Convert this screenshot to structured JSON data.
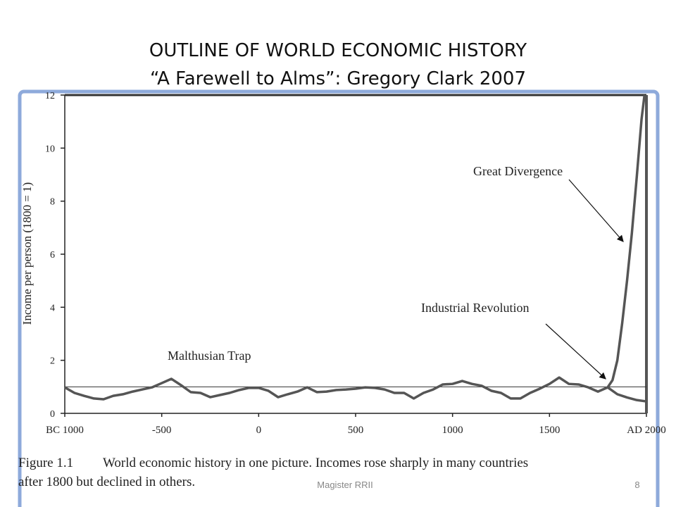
{
  "slide": {
    "title": [
      "OUTLINE OF WORLD ECONOMIC HISTORY",
      "“A Farewell to Alms”: Gregory Clark 2007"
    ],
    "footer": "Magister RRII",
    "page": "8"
  },
  "chart_data": {
    "type": "line",
    "ylabel": "Income per person (1800 = 1)",
    "caption_label": "Figure 1.1",
    "caption_lines": [
      "World economic history in one picture. Incomes rose sharply in many countries",
      "after 1800 but declined in others."
    ],
    "annotations": [
      "Malthusian Trap",
      "Great Divergence",
      "Industrial Revolution"
    ],
    "xlim": [
      -1000,
      2000
    ],
    "ylim": [
      0,
      12
    ],
    "xticks": [
      {
        "value": -1000,
        "label": "BC 1000"
      },
      -500,
      0,
      500,
      1000,
      1500,
      {
        "value": 2000,
        "label": "AD 2000"
      }
    ],
    "yticks": [
      0,
      2,
      4,
      6,
      8,
      10,
      12
    ],
    "reference_line": 1,
    "color": "#555555",
    "series": [
      {
        "x": [
          -1000,
          -950,
          -900,
          -850,
          -800,
          -750,
          -700,
          -650,
          -600,
          -550,
          -500,
          -450,
          -400,
          -350,
          -300,
          -250,
          -200,
          -150,
          -100,
          -50,
          0,
          50,
          100,
          150,
          200,
          250,
          300,
          350,
          400,
          450,
          500,
          550,
          600,
          650,
          700,
          750,
          800,
          850,
          900,
          950,
          1000,
          1050,
          1100,
          1150,
          1200,
          1250,
          1300,
          1350,
          1400,
          1450,
          1500,
          1550,
          1600,
          1650,
          1700,
          1750,
          1800,
          1825,
          1850,
          1875,
          1900,
          1925,
          1950,
          1975,
          1990
        ],
        "values": [
          0.98,
          0.77,
          0.66,
          0.56,
          0.53,
          0.66,
          0.72,
          0.82,
          0.9,
          0.98,
          1.14,
          1.3,
          1.06,
          0.8,
          0.77,
          0.61,
          0.69,
          0.77,
          0.88,
          0.96,
          0.96,
          0.85,
          0.61,
          0.72,
          0.82,
          0.98,
          0.8,
          0.82,
          0.88,
          0.9,
          0.93,
          0.98,
          0.96,
          0.9,
          0.77,
          0.77,
          0.56,
          0.77,
          0.9,
          1.09,
          1.11,
          1.22,
          1.11,
          1.04,
          0.85,
          0.77,
          0.56,
          0.56,
          0.77,
          0.93,
          1.11,
          1.35,
          1.11,
          1.09,
          0.98,
          0.82,
          0.98,
          1.25,
          2.0,
          3.4,
          5.0,
          6.8,
          8.9,
          11.1,
          12
        ]
      },
      {
        "x": [
          1800,
          1850,
          1900,
          1950,
          2000
        ],
        "values": [
          0.98,
          0.72,
          0.6,
          0.5,
          0.45
        ]
      }
    ]
  }
}
